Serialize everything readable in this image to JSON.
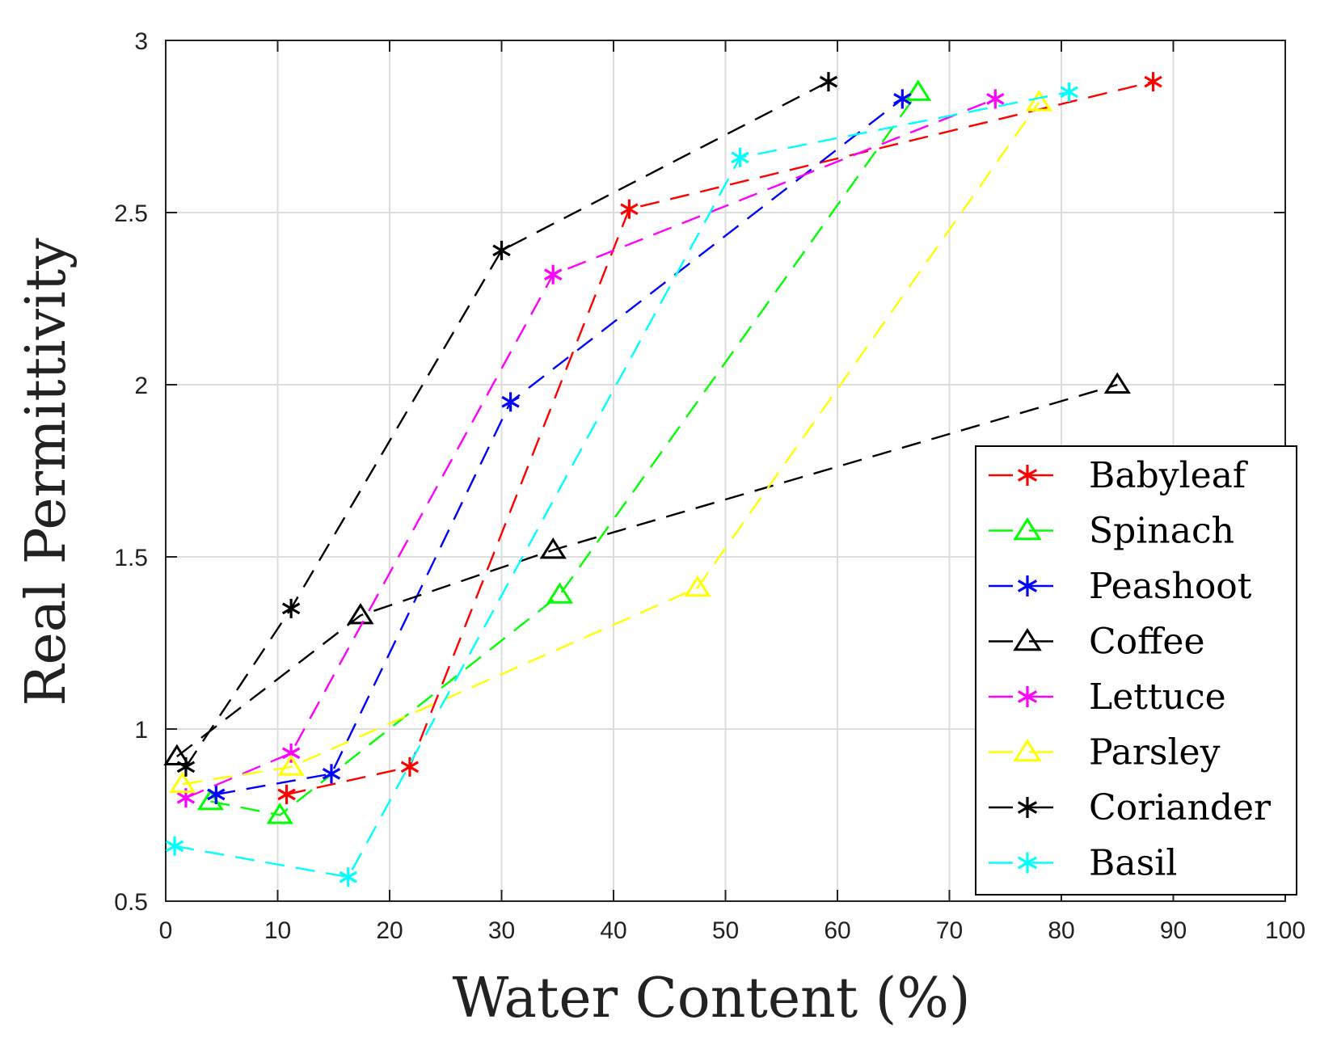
{
  "chart_data": {
    "type": "line",
    "xlabel": "Water Content (%)",
    "ylabel": "Real Permittivity",
    "xlim": [
      0,
      100
    ],
    "ylim": [
      0.5,
      3
    ],
    "xticks": [
      "0",
      "10",
      "20",
      "30",
      "40",
      "50",
      "60",
      "70",
      "80",
      "90",
      "100"
    ],
    "yticks": [
      "0.5",
      "1",
      "1.5",
      "2",
      "2.5",
      "3"
    ],
    "grid": true,
    "legend_position": "bottom-right",
    "series": [
      {
        "name": "Babyleaf",
        "color": "#ff0000",
        "marker": "asterisk",
        "x": [
          10.8,
          21.8,
          41.4,
          88.2
        ],
        "y": [
          0.81,
          0.89,
          2.51,
          2.88
        ]
      },
      {
        "name": "Spinach",
        "color": "#00ff00",
        "marker": "triangle",
        "x": [
          4.0,
          10.2,
          35.2,
          67.2
        ],
        "y": [
          0.79,
          0.75,
          1.39,
          2.85
        ]
      },
      {
        "name": "Peashoot",
        "color": "#0000ff",
        "marker": "asterisk",
        "x": [
          4.5,
          14.8,
          30.8,
          65.8
        ],
        "y": [
          0.81,
          0.87,
          1.95,
          2.83
        ]
      },
      {
        "name": "Coffee",
        "color": "#000000",
        "marker": "triangle",
        "x": [
          1.0,
          17.4,
          34.6,
          85.0
        ],
        "y": [
          0.92,
          1.33,
          1.52,
          2.0
        ]
      },
      {
        "name": "Lettuce",
        "color": "#ff00ff",
        "marker": "asterisk",
        "x": [
          1.8,
          11.2,
          34.6,
          74.1
        ],
        "y": [
          0.8,
          0.93,
          2.32,
          2.83
        ]
      },
      {
        "name": "Parsley",
        "color": "#ffff00",
        "marker": "triangle",
        "x": [
          1.5,
          11.2,
          47.5,
          78.0
        ],
        "y": [
          0.84,
          0.89,
          1.41,
          2.82
        ]
      },
      {
        "name": "Coriander",
        "color": "#000000",
        "marker": "asterisk",
        "x": [
          1.8,
          11.2,
          30.0,
          59.2
        ],
        "y": [
          0.89,
          1.35,
          2.39,
          2.88
        ]
      },
      {
        "name": "Basil",
        "color": "#00ffff",
        "marker": "asterisk",
        "x": [
          0.8,
          16.3,
          51.3,
          80.7
        ],
        "y": [
          0.66,
          0.57,
          2.66,
          2.85
        ]
      }
    ]
  }
}
